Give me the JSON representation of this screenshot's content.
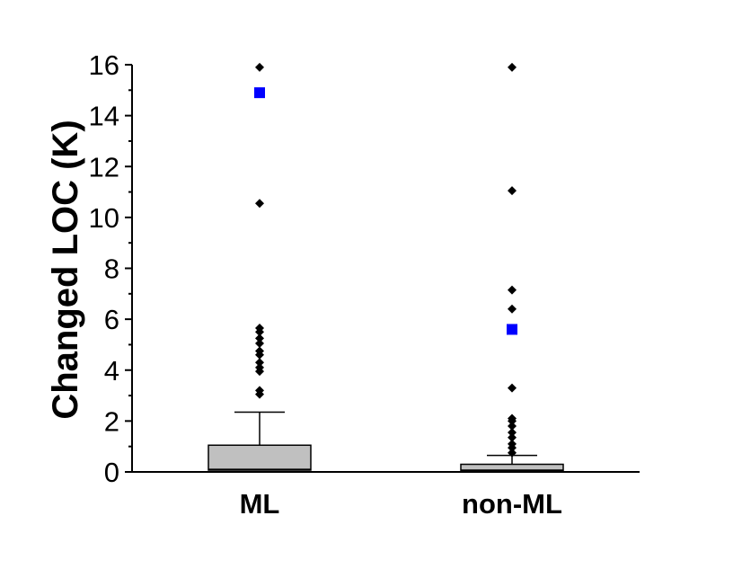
{
  "chart_data": {
    "type": "box",
    "title": "",
    "xlabel": "",
    "ylabel": "Changed LOC (K)",
    "ylim": [
      0,
      16
    ],
    "yticks": [
      0,
      2,
      4,
      6,
      8,
      10,
      12,
      14,
      16
    ],
    "categories": [
      "ML",
      "non-ML"
    ],
    "grid": false,
    "series": [
      {
        "category": "ML",
        "q1": 0.07,
        "median": 0.1,
        "q3": 1.05,
        "whisker_low": 0.0,
        "whisker_high": 2.35,
        "mean": 14.9,
        "outliers": [
          3.05,
          3.2,
          3.95,
          4.1,
          4.3,
          4.6,
          4.75,
          5.05,
          5.25,
          5.5,
          5.65,
          10.55,
          15.9
        ]
      },
      {
        "category": "non-ML",
        "q1": 0.03,
        "median": 0.07,
        "q3": 0.3,
        "whisker_low": 0.0,
        "whisker_high": 0.65,
        "mean": 5.6,
        "outliers": [
          0.75,
          0.95,
          1.1,
          1.35,
          1.55,
          1.8,
          2.0,
          2.1,
          3.3,
          6.4,
          7.15,
          11.05,
          15.9
        ]
      }
    ],
    "colors": {
      "box_fill": "#c0c0c0",
      "box_stroke": "#000000",
      "outlier": "#000000",
      "mean_marker": "#0000ff"
    }
  }
}
